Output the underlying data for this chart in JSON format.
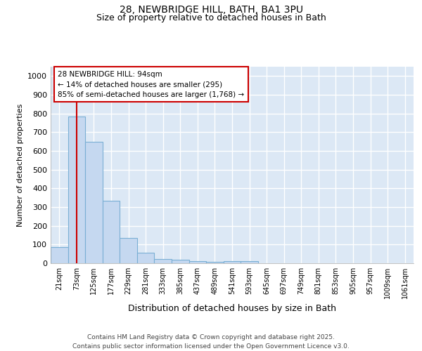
{
  "title_line1": "28, NEWBRIDGE HILL, BATH, BA1 3PU",
  "title_line2": "Size of property relative to detached houses in Bath",
  "xlabel": "Distribution of detached houses by size in Bath",
  "ylabel": "Number of detached properties",
  "bar_labels": [
    "21sqm",
    "73sqm",
    "125sqm",
    "177sqm",
    "229sqm",
    "281sqm",
    "333sqm",
    "385sqm",
    "437sqm",
    "489sqm",
    "541sqm",
    "593sqm",
    "645sqm",
    "697sqm",
    "749sqm",
    "801sqm",
    "853sqm",
    "905sqm",
    "957sqm",
    "1009sqm",
    "1061sqm"
  ],
  "bar_values": [
    85,
    785,
    650,
    335,
    135,
    58,
    22,
    17,
    10,
    6,
    10,
    10,
    0,
    0,
    0,
    0,
    0,
    0,
    0,
    0,
    0
  ],
  "bar_color": "#c5d8f0",
  "bar_edge_color": "#7aafd4",
  "plot_bg_color": "#dce8f5",
  "figure_bg_color": "#ffffff",
  "grid_color": "#ffffff",
  "red_line_x": 1.0,
  "annotation_text": "28 NEWBRIDGE HILL: 94sqm\n← 14% of detached houses are smaller (295)\n85% of semi-detached houses are larger (1,768) →",
  "annotation_box_color": "#ffffff",
  "annotation_border_color": "#cc0000",
  "footnote": "Contains HM Land Registry data © Crown copyright and database right 2025.\nContains public sector information licensed under the Open Government Licence v3.0.",
  "ylim": [
    0,
    1050
  ],
  "yticks": [
    0,
    100,
    200,
    300,
    400,
    500,
    600,
    700,
    800,
    900,
    1000
  ]
}
